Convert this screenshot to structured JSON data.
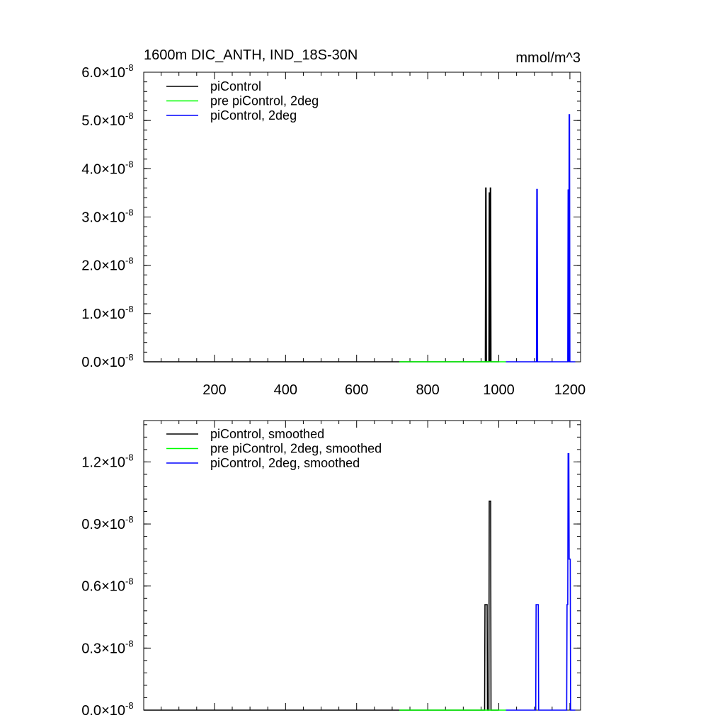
{
  "title_left": "1600m DIC_ANTH, IND_18S-30N",
  "title_right": "mmol/m^3",
  "chart_data": [
    {
      "type": "line",
      "x_ticks": [
        200,
        400,
        600,
        800,
        1000,
        1200
      ],
      "xlim": [
        1,
        1230
      ],
      "ylim": [
        0,
        6e-08
      ],
      "y_ticks": [
        {
          "value": 0.0,
          "mantissa": "0.0",
          "times": "×10",
          "exp": "-8"
        },
        {
          "value": 1e-08,
          "mantissa": "1.0",
          "times": "×10",
          "exp": "-8"
        },
        {
          "value": 2e-08,
          "mantissa": "2.0",
          "times": "×10",
          "exp": "-8"
        },
        {
          "value": 3e-08,
          "mantissa": "3.0",
          "times": "×10",
          "exp": "-8"
        },
        {
          "value": 4e-08,
          "mantissa": "4.0",
          "times": "×10",
          "exp": "-8"
        },
        {
          "value": 5e-08,
          "mantissa": "5.0",
          "times": "×10",
          "exp": "-8"
        },
        {
          "value": 6e-08,
          "mantissa": "6.0",
          "times": "×10",
          "exp": "-8"
        }
      ],
      "legend": {
        "placement": "top-left"
      },
      "series": [
        {
          "name": "piControl",
          "color": "#000000",
          "x": [
            1,
            962,
            963,
            964,
            965,
            972,
            973,
            974,
            975,
            976,
            977,
            978,
            1000
          ],
          "y": [
            0,
            0,
            3.6e-08,
            3.6e-08,
            0,
            0,
            3.5e-08,
            3.5e-08,
            0,
            3.6e-08,
            3.6e-08,
            0,
            0
          ]
        },
        {
          "name": "pre piControl, 2deg",
          "color": "#00ff00",
          "x": [
            720,
            1020
          ],
          "y": [
            0,
            0
          ]
        },
        {
          "name": "piControl, 2deg",
          "color": "#0000ff",
          "x": [
            1020,
            1106,
            1107,
            1108,
            1109,
            1194,
            1195,
            1196,
            1197,
            1198,
            1199,
            1200,
            1215
          ],
          "y": [
            0,
            0,
            3.57e-08,
            3.57e-08,
            0,
            0,
            3.56e-08,
            3.56e-08,
            0,
            5.12e-08,
            5.12e-08,
            0,
            0
          ]
        }
      ]
    },
    {
      "type": "line",
      "xlim": [
        1,
        1230
      ],
      "ylim": [
        0,
        1.4e-08
      ],
      "y_ticks": [
        {
          "value": 0.0,
          "mantissa": "0.0",
          "times": "×10",
          "exp": "-8"
        },
        {
          "value": 3e-09,
          "mantissa": "0.3",
          "times": "×10",
          "exp": "-8"
        },
        {
          "value": 6e-09,
          "mantissa": "0.6",
          "times": "×10",
          "exp": "-8"
        },
        {
          "value": 9e-09,
          "mantissa": "0.9",
          "times": "×10",
          "exp": "-8"
        },
        {
          "value": 1.2e-08,
          "mantissa": "1.2",
          "times": "×10",
          "exp": "-8"
        }
      ],
      "legend": {
        "placement": "top-left"
      },
      "series": [
        {
          "name": "piControl, smoothed",
          "color": "#000000",
          "x": [
            1,
            960,
            961,
            967,
            968,
            972,
            973,
            977,
            978,
            1000
          ],
          "y": [
            0,
            0,
            5.1e-09,
            5.1e-09,
            0,
            0,
            1.01e-08,
            1.01e-08,
            0,
            0
          ]
        },
        {
          "name": "pre piControl, 2deg, smoothed",
          "color": "#00ff00",
          "x": [
            720,
            1020
          ],
          "y": [
            0,
            0
          ]
        },
        {
          "name": "piControl, 2deg, smoothed",
          "color": "#0000ff",
          "x": [
            1020,
            1104,
            1105,
            1111,
            1112,
            1191,
            1192,
            1194,
            1195,
            1197,
            1198,
            1201,
            1202,
            1215
          ],
          "y": [
            0,
            0,
            5.1e-09,
            5.1e-09,
            0,
            0,
            5.1e-09,
            5.1e-09,
            1.24e-08,
            1.24e-08,
            7.3e-09,
            7.3e-09,
            0,
            0
          ]
        }
      ]
    }
  ]
}
